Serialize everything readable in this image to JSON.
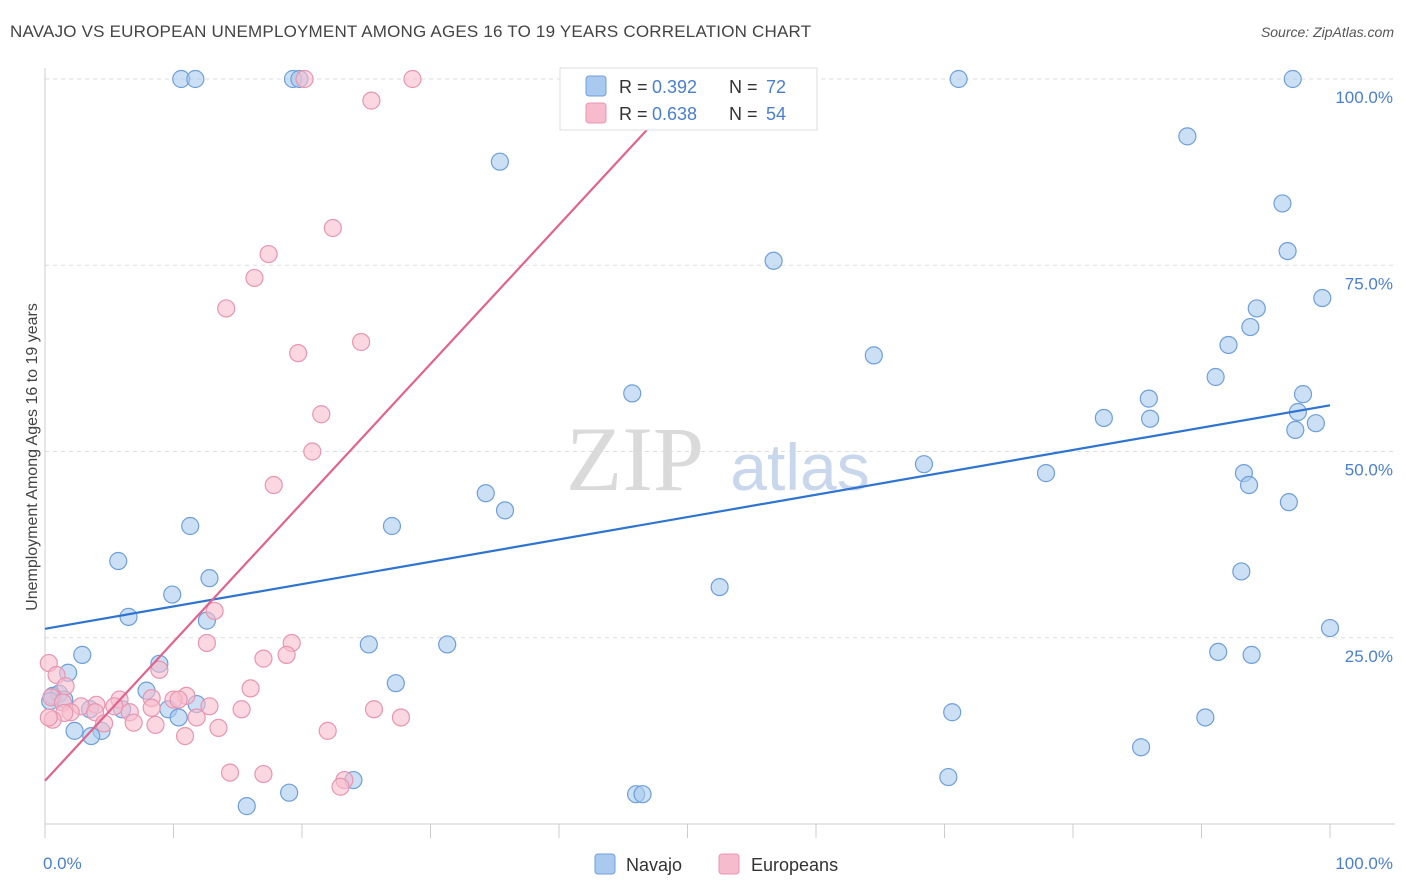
{
  "title": "NAVAJO VS EUROPEAN UNEMPLOYMENT AMONG AGES 16 TO 19 YEARS CORRELATION CHART",
  "source": "Source: ZipAtlas.com",
  "watermark": {
    "zip": "ZIP",
    "atlas": "atlas"
  },
  "colors": {
    "navajo_fill": "#a9c9ef",
    "navajo_stroke": "#6f9fd8",
    "navajo_line": "#2f74d0",
    "europeans_fill": "#f6bccd",
    "europeans_stroke": "#e895b0",
    "europeans_line": "#e0648d",
    "axis_label": "#4a7fcf",
    "grid": "#dddddd"
  },
  "chart_data": {
    "type": "scatter",
    "title": "NAVAJO VS EUROPEAN UNEMPLOYMENT AMONG AGES 16 TO 19 YEARS CORRELATION CHART",
    "xlabel": "",
    "ylabel": "Unemployment Among Ages 16 to 19 years",
    "xlim": [
      0,
      100
    ],
    "ylim": [
      0,
      100
    ],
    "x_tick_labels": [
      {
        "value": 0,
        "label": "0.0%"
      },
      {
        "value": 100,
        "label": "100.0%"
      }
    ],
    "y_tick_labels": [
      {
        "value": 25,
        "label": "25.0%"
      },
      {
        "value": 50,
        "label": "50.0%"
      },
      {
        "value": 75,
        "label": "75.0%"
      },
      {
        "value": 100,
        "label": "100.0%"
      }
    ],
    "legend_stats": [
      {
        "series": "Navajo",
        "r_label": "R = ",
        "r_value": "0.392",
        "n_label": "N = ",
        "n_value": "72"
      },
      {
        "series": "Europeans",
        "r_label": "R = ",
        "r_value": "0.638",
        "n_label": "N = ",
        "n_value": "54"
      }
    ],
    "series": [
      {
        "name": "Navajo",
        "trend": {
          "x": [
            0,
            100
          ],
          "y": [
            26.2,
            56.2
          ]
        },
        "points": [
          [
            10.6,
            100
          ],
          [
            11.7,
            100
          ],
          [
            19.3,
            100
          ],
          [
            19.8,
            100
          ],
          [
            71.1,
            100
          ],
          [
            97.1,
            100
          ],
          [
            35.4,
            88.9
          ],
          [
            88.9,
            92.3
          ],
          [
            96.3,
            83.3
          ],
          [
            96.7,
            76.9
          ],
          [
            56.7,
            75.6
          ],
          [
            94.3,
            69.2
          ],
          [
            93.8,
            66.7
          ],
          [
            99.4,
            70.6
          ],
          [
            92.1,
            64.3
          ],
          [
            64.5,
            62.9
          ],
          [
            91.1,
            60.0
          ],
          [
            45.7,
            57.8
          ],
          [
            85.9,
            57.1
          ],
          [
            97.9,
            57.7
          ],
          [
            82.4,
            54.5
          ],
          [
            86.0,
            54.4
          ],
          [
            97.5,
            55.3
          ],
          [
            98.9,
            53.8
          ],
          [
            97.3,
            52.9
          ],
          [
            68.4,
            48.3
          ],
          [
            77.9,
            47.1
          ],
          [
            93.3,
            47.1
          ],
          [
            93.7,
            45.5
          ],
          [
            34.3,
            44.4
          ],
          [
            96.8,
            43.2
          ],
          [
            35.8,
            42.1
          ],
          [
            27.0,
            40.0
          ],
          [
            11.3,
            40.0
          ],
          [
            5.7,
            35.3
          ],
          [
            12.8,
            33.0
          ],
          [
            93.1,
            33.9
          ],
          [
            52.5,
            31.8
          ],
          [
            9.9,
            30.8
          ],
          [
            6.5,
            27.8
          ],
          [
            12.6,
            27.3
          ],
          [
            100.0,
            26.3
          ],
          [
            25.2,
            24.1
          ],
          [
            31.3,
            24.1
          ],
          [
            91.3,
            23.1
          ],
          [
            93.9,
            22.7
          ],
          [
            2.9,
            22.7
          ],
          [
            8.9,
            21.5
          ],
          [
            1.8,
            20.3
          ],
          [
            27.3,
            18.9
          ],
          [
            7.9,
            17.9
          ],
          [
            0.6,
            17.2
          ],
          [
            1.1,
            17.5
          ],
          [
            1.5,
            16.7
          ],
          [
            0.4,
            16.5
          ],
          [
            3.5,
            15.4
          ],
          [
            6.0,
            15.4
          ],
          [
            9.6,
            15.4
          ],
          [
            11.8,
            16.1
          ],
          [
            70.6,
            15.0
          ],
          [
            10.4,
            14.3
          ],
          [
            90.3,
            14.3
          ],
          [
            2.3,
            12.5
          ],
          [
            4.4,
            12.5
          ],
          [
            3.6,
            11.8
          ],
          [
            85.3,
            10.3
          ],
          [
            70.3,
            6.3
          ],
          [
            19.0,
            4.2
          ],
          [
            24.0,
            5.9
          ],
          [
            46.0,
            4.0
          ],
          [
            46.5,
            4.0
          ],
          [
            15.7,
            2.4
          ]
        ]
      },
      {
        "name": "Europeans",
        "trend": {
          "x": [
            0,
            50.5
          ],
          "y": [
            5.8,
            100
          ]
        },
        "points": [
          [
            20.2,
            100
          ],
          [
            28.6,
            100
          ],
          [
            25.4,
            97.1
          ],
          [
            22.4,
            80.0
          ],
          [
            17.4,
            76.5
          ],
          [
            16.3,
            73.3
          ],
          [
            14.1,
            69.2
          ],
          [
            19.7,
            63.2
          ],
          [
            24.6,
            64.7
          ],
          [
            21.5,
            55.0
          ],
          [
            20.8,
            50.0
          ],
          [
            17.8,
            45.5
          ],
          [
            13.2,
            28.6
          ],
          [
            12.6,
            24.3
          ],
          [
            19.2,
            24.3
          ],
          [
            18.8,
            22.7
          ],
          [
            17.0,
            22.2
          ],
          [
            0.3,
            21.6
          ],
          [
            8.9,
            20.7
          ],
          [
            0.9,
            20.0
          ],
          [
            16.0,
            18.2
          ],
          [
            1.6,
            18.5
          ],
          [
            0.5,
            17.0
          ],
          [
            11.0,
            17.2
          ],
          [
            5.8,
            16.7
          ],
          [
            8.3,
            16.9
          ],
          [
            10.0,
            16.7
          ],
          [
            10.4,
            16.7
          ],
          [
            1.4,
            16.3
          ],
          [
            4.0,
            16.0
          ],
          [
            2.8,
            15.8
          ],
          [
            5.4,
            15.8
          ],
          [
            8.3,
            15.6
          ],
          [
            12.8,
            15.8
          ],
          [
            15.3,
            15.4
          ],
          [
            25.6,
            15.4
          ],
          [
            2.0,
            15.0
          ],
          [
            3.9,
            15.0
          ],
          [
            6.6,
            15.0
          ],
          [
            1.5,
            14.9
          ],
          [
            11.8,
            14.3
          ],
          [
            27.7,
            14.3
          ],
          [
            0.6,
            14.0
          ],
          [
            0.3,
            14.3
          ],
          [
            4.6,
            13.5
          ],
          [
            6.9,
            13.6
          ],
          [
            13.5,
            12.9
          ],
          [
            8.6,
            13.3
          ],
          [
            10.9,
            11.8
          ],
          [
            22.0,
            12.5
          ],
          [
            14.4,
            6.9
          ],
          [
            17.0,
            6.7
          ],
          [
            23.3,
            5.9
          ],
          [
            23.0,
            5.0
          ]
        ]
      }
    ]
  }
}
